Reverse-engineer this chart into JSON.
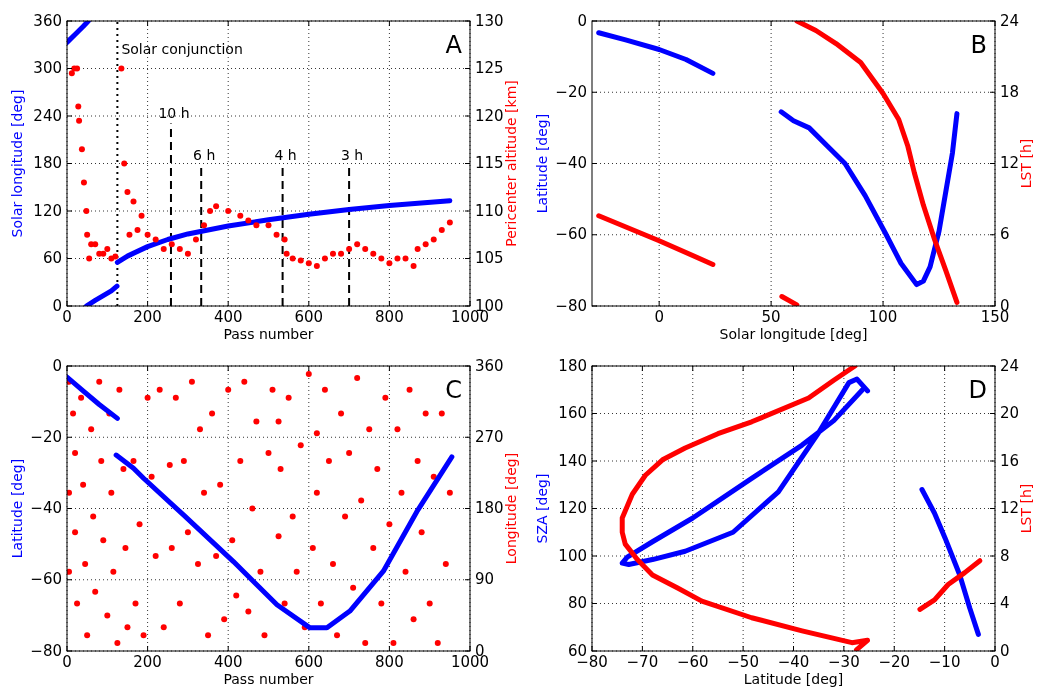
{
  "chart_data": [
    {
      "type": "line",
      "xlabel": "Pass number",
      "ylabel": "Solar longitude [deg]",
      "y2label": "Pericenter altitude [km]",
      "annotations": [
        "A"
      ],
      "grid": true,
      "xlim": [
        0,
        1000
      ],
      "xticks": [
        0,
        200,
        400,
        600,
        800,
        1000
      ],
      "ylim": [
        0,
        360
      ],
      "yticks": [
        0,
        60,
        120,
        180,
        240,
        300,
        360
      ],
      "y2lim": [
        100,
        130
      ],
      "y2ticks": [
        100,
        105,
        110,
        115,
        120,
        125,
        130
      ],
      "ref_lines": [
        {
          "axis": "x",
          "value": 125,
          "label": "Solar conjunction",
          "line_style": "dotted",
          "color": "#000000"
        },
        {
          "axis": "x",
          "value": 258,
          "label": "10 h",
          "line_style": "dashed",
          "color": "#000000"
        },
        {
          "axis": "x",
          "value": 333,
          "label": "6 h",
          "line_style": "dashed",
          "color": "#000000"
        },
        {
          "axis": "x",
          "value": 535,
          "label": "4 h",
          "line_style": "dashed",
          "color": "#000000"
        },
        {
          "axis": "x",
          "value": 700,
          "label": "3 h",
          "line_style": "dashed",
          "color": "#000000"
        }
      ],
      "series": [
        {
          "type": "line",
          "color": "#0000ff",
          "x": [
            0,
            20,
            40,
            53
          ],
          "values": [
            333,
            343,
            353,
            360
          ]
        },
        {
          "type": "line",
          "color": "#0000ff",
          "x": [
            48,
            70,
            90,
            110,
            124
          ],
          "values": [
            0,
            7,
            13,
            19,
            25
          ]
        },
        {
          "type": "line",
          "color": "#0000ff",
          "x": [
            125,
            150,
            200,
            250,
            300,
            400,
            500,
            600,
            700,
            800,
            950
          ],
          "values": [
            55,
            63,
            75,
            84,
            91,
            101,
            109,
            116,
            122,
            127,
            133
          ]
        },
        {
          "type": "scatter",
          "axis": "y2",
          "color": "#ff0000",
          "marker": "circle",
          "x": [
            12,
            18,
            25,
            28,
            30,
            37,
            42,
            48,
            50,
            55,
            60,
            70,
            80,
            90,
            100,
            110,
            120,
            135,
            142,
            150,
            155,
            165,
            175,
            185,
            200,
            220,
            240,
            260,
            280,
            300,
            320,
            340,
            355,
            370,
            400,
            430,
            450,
            470,
            500,
            520,
            540,
            545,
            560,
            580,
            600,
            620,
            640,
            660,
            680,
            700,
            720,
            740,
            760,
            780,
            800,
            820,
            840,
            860,
            870,
            890,
            910,
            930,
            950
          ],
          "values": [
            124.5,
            125,
            125,
            121,
            119.5,
            116.5,
            113,
            110,
            107.5,
            105,
            106.5,
            106.5,
            105.5,
            105.5,
            106,
            105,
            105.2,
            125,
            115,
            112,
            107.5,
            111,
            108,
            109.5,
            107.5,
            107,
            106,
            106.5,
            106,
            105.5,
            107,
            108.5,
            110,
            110.5,
            110,
            109.5,
            109,
            108.5,
            108.5,
            107.5,
            107,
            105.5,
            105,
            104.8,
            104.5,
            104.2,
            105,
            105.5,
            105.5,
            106,
            106.5,
            106,
            105.5,
            105,
            104.5,
            105,
            105,
            104.2,
            106,
            106.5,
            107,
            108,
            108.8
          ]
        }
      ]
    },
    {
      "type": "line",
      "xlabel": "Solar longitude [deg]",
      "ylabel": "Latitude [deg]",
      "y2label": "LST [h]",
      "annotations": [
        "B"
      ],
      "grid": true,
      "xlim": [
        -30,
        150
      ],
      "xticks": [
        0,
        50,
        100,
        150
      ],
      "ylim": [
        -80,
        0
      ],
      "yticks": [
        {
          "value": -80,
          "label": "−80"
        },
        {
          "value": -60,
          "label": "−60"
        },
        {
          "value": -40,
          "label": "−40"
        },
        {
          "value": -20,
          "label": "−20"
        },
        0
      ],
      "y2lim": [
        0,
        24
      ],
      "y2ticks": [
        0,
        6,
        12,
        18,
        24
      ],
      "series": [
        {
          "type": "line",
          "color": "#0000ff",
          "x": [
            -27,
            -15,
            0,
            12,
            24
          ],
          "values": [
            -3.3,
            -5.3,
            -8,
            -10.8,
            -14.7
          ]
        },
        {
          "type": "line",
          "color": "#0000ff",
          "x": [
            54.5,
            60,
            67,
            75,
            83,
            92,
            101,
            108,
            115,
            118,
            121,
            125,
            128,
            131,
            133
          ],
          "values": [
            -25.5,
            -28,
            -30,
            -35,
            -40,
            -49,
            -59.5,
            -68,
            -74,
            -73,
            -69,
            -59,
            -48,
            -37,
            -26
          ]
        },
        {
          "type": "line",
          "axis": "y2",
          "color": "#ff0000",
          "x": [
            -27,
            0,
            24
          ],
          "values": [
            7.6,
            5.5,
            3.5
          ]
        },
        {
          "type": "line",
          "axis": "y2",
          "color": "#ff0000",
          "x": [
            54.8,
            61.5
          ],
          "values": [
            0.8,
            0.1
          ]
        },
        {
          "type": "line",
          "axis": "y2",
          "color": "#ff0000",
          "x": [
            61.5,
            70,
            79,
            90,
            100,
            107,
            111,
            114,
            118,
            123,
            128,
            133
          ],
          "values": [
            24,
            23.2,
            22.1,
            20.5,
            17.9,
            15.7,
            13.5,
            11.2,
            8.5,
            5.6,
            3,
            0.3
          ]
        }
      ]
    },
    {
      "type": "line",
      "xlabel": "Pass number",
      "ylabel": "Latitude [deg]",
      "y2label": "Longitude [deg]",
      "annotations": [
        "C"
      ],
      "grid": true,
      "xlim": [
        0,
        1000
      ],
      "xticks": [
        0,
        200,
        400,
        600,
        800,
        1000
      ],
      "ylim": [
        -80,
        0
      ],
      "yticks": [
        {
          "value": -80,
          "label": "−80"
        },
        {
          "value": -60,
          "label": "−60"
        },
        {
          "value": -40,
          "label": "−40"
        },
        {
          "value": -20,
          "label": "−20"
        },
        0
      ],
      "y2lim": [
        0,
        360
      ],
      "y2ticks": [
        0,
        90,
        180,
        270,
        360
      ],
      "series": [
        {
          "type": "scatter",
          "axis": "y2",
          "color": "#ff0000",
          "marker": "circle",
          "x": [
            5,
            5,
            5,
            15,
            20,
            20,
            25,
            35,
            40,
            45,
            50,
            60,
            65,
            70,
            80,
            85,
            90,
            100,
            105,
            110,
            115,
            125,
            130,
            140,
            145,
            150,
            165,
            170,
            180,
            190,
            200,
            210,
            220,
            230,
            240,
            255,
            260,
            270,
            280,
            290,
            300,
            310,
            325,
            330,
            340,
            350,
            360,
            370,
            380,
            390,
            400,
            410,
            420,
            430,
            440,
            450,
            460,
            470,
            480,
            490,
            500,
            510,
            525,
            525,
            530,
            540,
            550,
            560,
            570,
            580,
            590,
            600,
            610,
            620,
            620,
            630,
            640,
            650,
            660,
            670,
            680,
            690,
            700,
            710,
            720,
            730,
            740,
            750,
            760,
            770,
            780,
            790,
            800,
            810,
            820,
            830,
            840,
            850,
            860,
            870,
            880,
            890,
            900,
            910,
            920,
            930,
            940,
            950
          ],
          "values": [
            340,
            200,
            100,
            300,
            250,
            150,
            60,
            320,
            210,
            110,
            20,
            280,
            170,
            75,
            340,
            240,
            140,
            45,
            300,
            200,
            100,
            10,
            330,
            230,
            130,
            30,
            240,
            60,
            160,
            20,
            320,
            220,
            120,
            330,
            30,
            235,
            130,
            320,
            60,
            240,
            150,
            340,
            110,
            280,
            200,
            20,
            300,
            120,
            210,
            40,
            330,
            140,
            70,
            240,
            340,
            50,
            180,
            290,
            100,
            20,
            250,
            330,
            290,
            145,
            230,
            60,
            320,
            170,
            100,
            260,
            30,
            350,
            130,
            275,
            200,
            60,
            330,
            240,
            110,
            20,
            300,
            170,
            250,
            80,
            345,
            190,
            10,
            280,
            130,
            230,
            60,
            320,
            160,
            10,
            280,
            200,
            100,
            330,
            40,
            240,
            150,
            300,
            60,
            220,
            10,
            300,
            110,
            200
          ]
        },
        {
          "type": "line",
          "color": "#0000ff",
          "x": [
            0,
            40,
            80,
            125
          ],
          "values": [
            -3.1,
            -7,
            -10.8,
            -14.7
          ]
        },
        {
          "type": "line",
          "color": "#0000ff",
          "x": [
            122,
            165,
            190,
            289,
            413,
            521,
            603,
            645,
            702,
            785,
            868,
            955
          ],
          "values": [
            -25,
            -28.7,
            -31.5,
            -41.8,
            -54.9,
            -67,
            -73.5,
            -73.5,
            -68.8,
            -57.6,
            -40.9,
            -25.5
          ]
        }
      ]
    },
    {
      "type": "line",
      "xlabel": "Latitude [deg]",
      "ylabel": "SZA [deg]",
      "y2label": "LST [h]",
      "annotations": [
        "D"
      ],
      "grid": true,
      "xlim": [
        -80,
        0
      ],
      "xticks": [
        {
          "value": -80,
          "label": "−80"
        },
        {
          "value": -70,
          "label": "−70"
        },
        {
          "value": -60,
          "label": "−60"
        },
        {
          "value": -50,
          "label": "−50"
        },
        {
          "value": -40,
          "label": "−40"
        },
        {
          "value": -30,
          "label": "−30"
        },
        {
          "value": -20,
          "label": "−20"
        },
        {
          "value": -10,
          "label": "−10"
        },
        0
      ],
      "ylim": [
        60,
        180
      ],
      "yticks": [
        60,
        80,
        100,
        120,
        140,
        160,
        180
      ],
      "y2lim": [
        0,
        24
      ],
      "y2ticks": [
        0,
        4,
        8,
        12,
        16,
        20,
        24
      ],
      "series": [
        {
          "type": "line",
          "color": "#0000ff",
          "x": [
            -25.3,
            -27.4,
            -29,
            -35,
            -43,
            -52,
            -61.5,
            -68,
            -72.7,
            -74,
            -73,
            -68,
            -60,
            -48.3,
            -38.3,
            -32,
            -26.4
          ],
          "values": [
            169.5,
            174.5,
            173,
            152,
            127,
            110,
            102,
            98.5,
            96.4,
            97,
            99.5,
            106,
            116,
            132.7,
            146.7,
            157,
            169.8
          ]
        },
        {
          "type": "line",
          "color": "#0000ff",
          "x": [
            -14.5,
            -12,
            -9.9,
            -7,
            -5,
            -3.3
          ],
          "values": [
            128,
            118,
            107.5,
            92,
            78,
            67
          ]
        },
        {
          "type": "line",
          "axis": "y2",
          "color": "#ff0000",
          "x": [
            -27.8,
            -32,
            -37,
            -48.3,
            -55,
            -61.5,
            -66,
            -69.4,
            -72,
            -74,
            -74,
            -73.4,
            -71,
            -68,
            -63,
            -58.2,
            -48.3,
            -38.3,
            -28.4,
            -25.3,
            -27.5
          ],
          "values": [
            24,
            22.8,
            21.3,
            19.3,
            18.3,
            17.1,
            16.1,
            14.8,
            13.2,
            11.2,
            10,
            9,
            7.7,
            6.4,
            5.3,
            4.2,
            2.8,
            1.7,
            0.7,
            0.9,
            0.1
          ]
        },
        {
          "type": "line",
          "axis": "y2",
          "color": "#ff0000",
          "x": [
            -14.9,
            -12,
            -9.3,
            -6,
            -3
          ],
          "values": [
            3.5,
            4.3,
            5.6,
            6.6,
            7.6
          ]
        }
      ]
    }
  ]
}
